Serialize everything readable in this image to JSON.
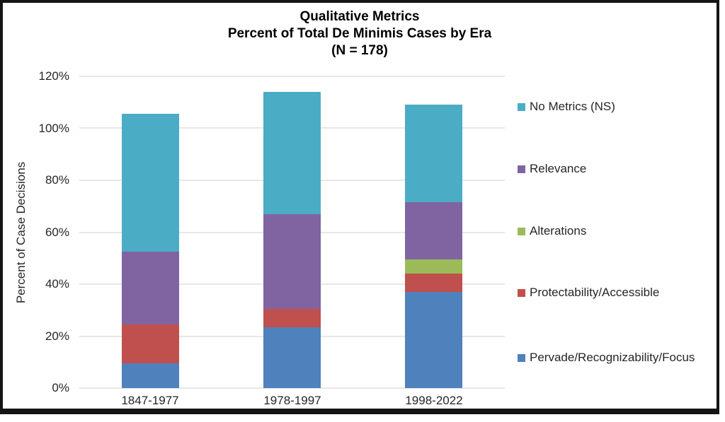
{
  "title": {
    "line1": "Qualitative Metrics",
    "line2": "Percent of Total De Minimis Cases by Era",
    "line3": "(N = 178)"
  },
  "y_axis": {
    "title": "Percent of Case Decisions",
    "ticks": [
      "0%",
      "20%",
      "40%",
      "60%",
      "80%",
      "100%",
      "120%"
    ],
    "min": 0,
    "max": 120,
    "step": 20
  },
  "x_axis": {
    "categories": [
      "1847-1977",
      "1978-1997",
      "1998-2022"
    ]
  },
  "legend": [
    {
      "label": "No Metrics (NS)",
      "color": "#4BACC6"
    },
    {
      "label": "Relevance",
      "color": "#8064A2"
    },
    {
      "label": "Alterations",
      "color": "#9BBB59"
    },
    {
      "label": "Protectability/Accessible",
      "color": "#C0504D"
    },
    {
      "label": "Pervade/Recognizability/Focus",
      "color": "#4F81BD"
    }
  ],
  "chart_data": {
    "type": "bar",
    "stacked": true,
    "title": "Qualitative Metrics - Percent of Total De Minimis Cases by Era (N = 178)",
    "xlabel": "",
    "ylabel": "Percent of Case Decisions",
    "ylim": [
      0,
      120
    ],
    "grid": true,
    "legend_position": "right",
    "categories": [
      "1847-1977",
      "1978-1997",
      "1998-2022"
    ],
    "series": [
      {
        "name": "Pervade/Recognizability/Focus",
        "color": "#4F81BD",
        "values": [
          9.5,
          23.5,
          37
        ]
      },
      {
        "name": "Protectability/Accessible",
        "color": "#C0504D",
        "values": [
          15,
          7,
          7
        ]
      },
      {
        "name": "Alterations",
        "color": "#9BBB59",
        "values": [
          0,
          0,
          5.5
        ]
      },
      {
        "name": "Relevance",
        "color": "#8064A2",
        "values": [
          28,
          36.5,
          22
        ]
      },
      {
        "name": "No Metrics (NS)",
        "color": "#4BACC6",
        "values": [
          53,
          47,
          37.5
        ]
      }
    ],
    "stack_totals": [
      105.5,
      114,
      109
    ]
  },
  "colors": {
    "teal": "#4BACC6",
    "purple": "#8064A2",
    "green": "#9BBB59",
    "red": "#C0504D",
    "blue": "#4F81BD",
    "gridline": "#e7e7e7",
    "frame": "#151515",
    "text": "#262626"
  }
}
